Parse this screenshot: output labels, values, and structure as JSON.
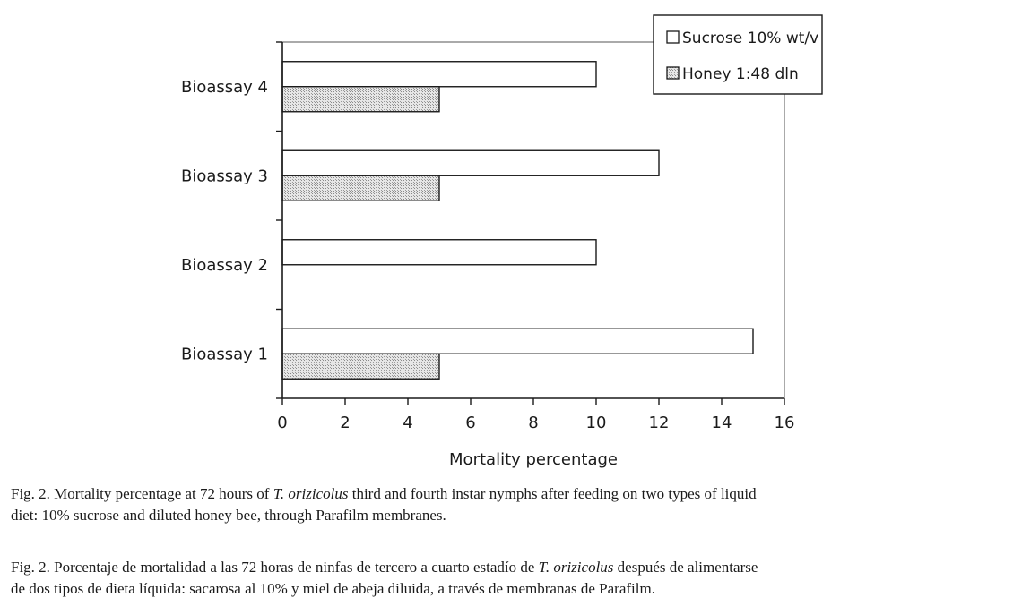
{
  "chart_data": {
    "type": "bar",
    "orientation": "horizontal",
    "categories": [
      "Bioassay 1",
      "Bioassay 2",
      "Bioassay 3",
      "Bioassay 4"
    ],
    "series": [
      {
        "name": "Sucrose 10% wt/v",
        "values": [
          15,
          10,
          12,
          10
        ],
        "fill": "#ffffff"
      },
      {
        "name": "Honey 1:48 dln",
        "values": [
          5,
          0,
          5,
          5
        ],
        "fill": "#d9d9d9"
      }
    ],
    "xlabel": "Mortality percentage",
    "ylabel": "",
    "xlim": [
      0,
      16
    ],
    "xticks": [
      0,
      2,
      4,
      6,
      8,
      10,
      12,
      14,
      16
    ],
    "grid": false,
    "legend": "top-right"
  },
  "caption_en": {
    "line1_a": "Fig. 2. Mortality percentage at 72 hours of ",
    "line1_species": "T. orizicolus",
    "line1_b": " third and fourth instar nymphs after feeding on two types of liquid",
    "line2": "diet: 10% sucrose and diluted honey bee, through Parafilm membranes."
  },
  "caption_es": {
    "line1_a": "Fig. 2. Porcentaje de mortalidad a las 72 horas de ninfas de tercero a cuarto estadío de ",
    "line1_species": "T. orizicolus",
    "line1_b": " después de alimentarse",
    "line2": "de dos tipos de dieta líquida: sacarosa al 10% y miel de abeja diluida, a través de membranas de Parafilm."
  }
}
